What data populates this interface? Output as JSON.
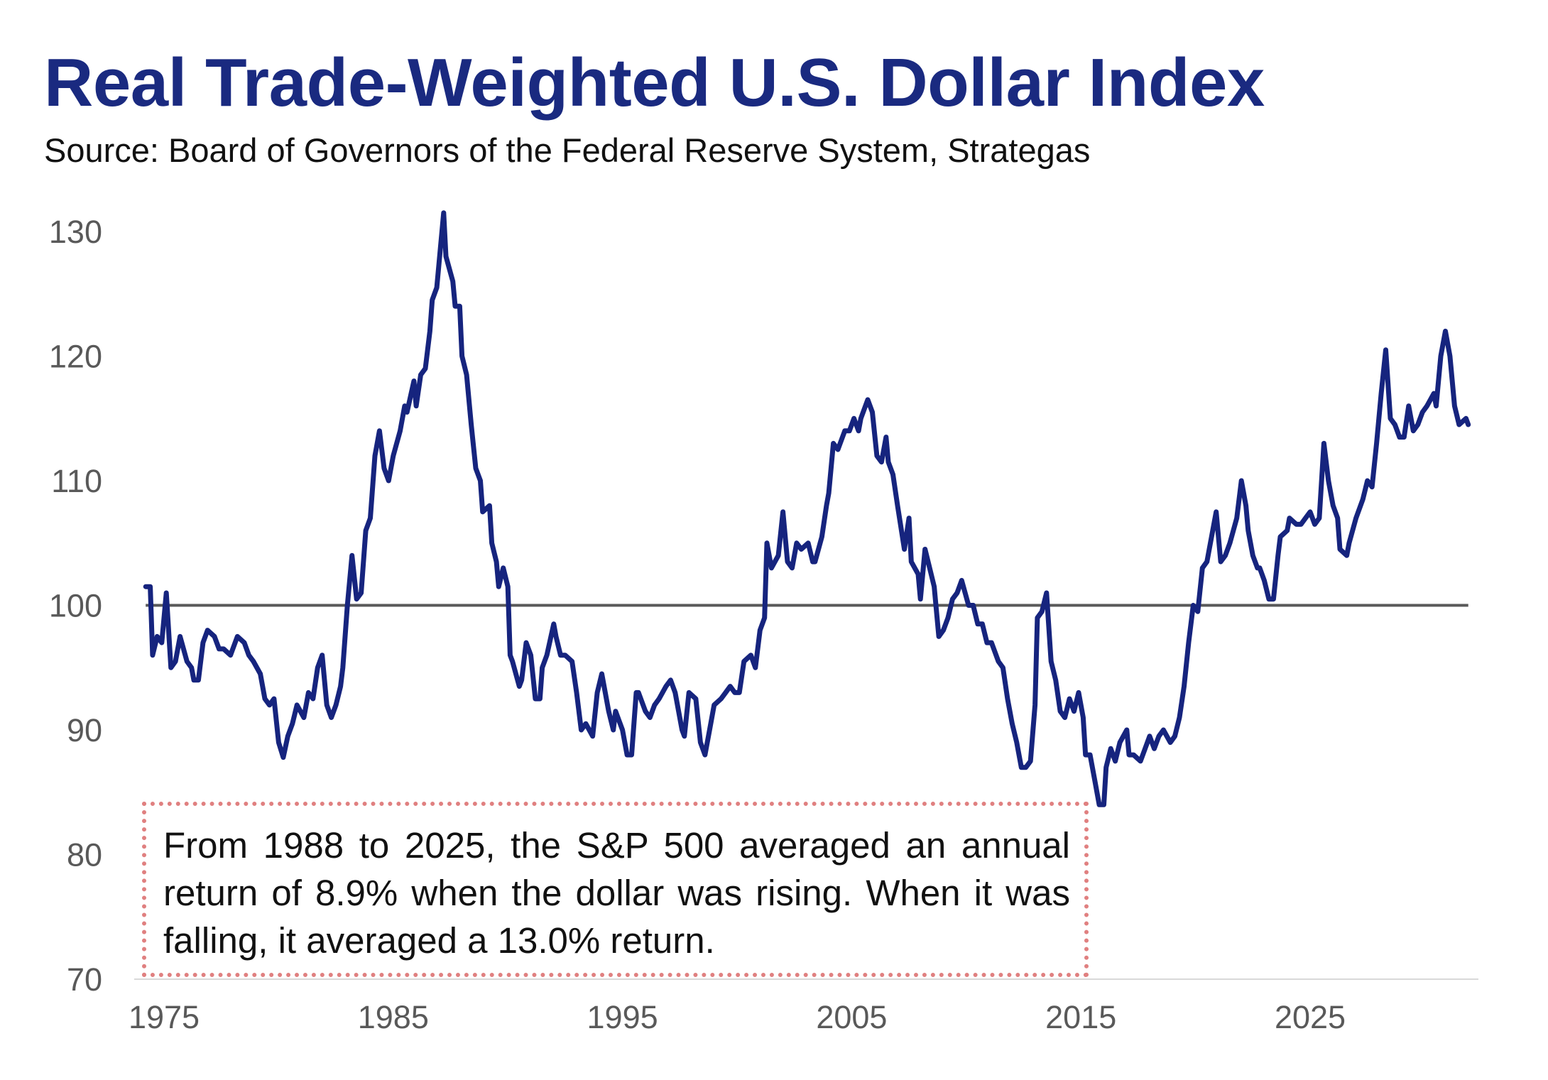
{
  "chart_data": {
    "type": "line",
    "title": "Real Trade-Weighted U.S. Dollar Index",
    "subtitle": "Source: Board of Governors of the Federal Reserve System, Strategas",
    "xlabel": "",
    "ylabel": "",
    "xlim": [
      1973,
      2033
    ],
    "ylim": [
      70,
      130
    ],
    "x_ticks": [
      "1975",
      "1985",
      "1995",
      "2005",
      "2015",
      "2025"
    ],
    "y_ticks": [
      "70",
      "80",
      "90",
      "100",
      "110",
      "120",
      "130"
    ],
    "grid": false,
    "legend": "none",
    "reference_line": 100,
    "colors": {
      "series": "#16247e",
      "reference": "#595959",
      "title": "#1a2a80",
      "annotation_border": "#e08080"
    },
    "series": [
      {
        "points": [
          [
            1974.2,
            101.5
          ],
          [
            1974.4,
            101.5
          ],
          [
            1974.5,
            96
          ],
          [
            1974.7,
            97.5
          ],
          [
            1974.9,
            97
          ],
          [
            1975.1,
            101
          ],
          [
            1975.3,
            95
          ],
          [
            1975.5,
            95.5
          ],
          [
            1975.7,
            97.5
          ],
          [
            1976.0,
            95.5
          ],
          [
            1976.2,
            95
          ],
          [
            1976.3,
            94
          ],
          [
            1976.5,
            94
          ],
          [
            1976.7,
            97
          ],
          [
            1976.9,
            98
          ],
          [
            1977.2,
            97.5
          ],
          [
            1977.4,
            96.5
          ],
          [
            1977.6,
            96.5
          ],
          [
            1977.9,
            96
          ],
          [
            1978.2,
            97.5
          ],
          [
            1978.5,
            97
          ],
          [
            1978.7,
            96
          ],
          [
            1978.9,
            95.5
          ],
          [
            1979.2,
            94.5
          ],
          [
            1979.4,
            92.5
          ],
          [
            1979.6,
            92
          ],
          [
            1979.8,
            92.5
          ],
          [
            1980.0,
            89
          ],
          [
            1980.2,
            87.8
          ],
          [
            1980.4,
            89.5
          ],
          [
            1980.6,
            90.5
          ],
          [
            1980.8,
            92
          ],
          [
            1981.1,
            91
          ],
          [
            1981.3,
            93
          ],
          [
            1981.5,
            92.5
          ],
          [
            1981.7,
            95
          ],
          [
            1981.9,
            96
          ],
          [
            1982.1,
            92
          ],
          [
            1982.3,
            91
          ],
          [
            1982.5,
            92
          ],
          [
            1982.7,
            93.5
          ],
          [
            1982.8,
            95
          ],
          [
            1983.0,
            100
          ],
          [
            1983.2,
            104
          ],
          [
            1983.4,
            100.5
          ],
          [
            1983.6,
            101
          ],
          [
            1983.8,
            106
          ],
          [
            1984.0,
            107
          ],
          [
            1984.2,
            112
          ],
          [
            1984.4,
            114
          ],
          [
            1984.6,
            111
          ],
          [
            1984.8,
            110
          ],
          [
            1985.0,
            112
          ],
          [
            1985.3,
            114
          ],
          [
            1985.5,
            116
          ],
          [
            1985.6,
            115.5
          ],
          [
            1985.9,
            118
          ],
          [
            1986.0,
            116
          ],
          [
            1986.2,
            118.5
          ],
          [
            1986.4,
            119
          ],
          [
            1986.6,
            122
          ],
          [
            1986.7,
            124.5
          ],
          [
            1986.9,
            125.5
          ],
          [
            1987.2,
            131.5
          ],
          [
            1987.3,
            128
          ],
          [
            1987.6,
            126
          ],
          [
            1987.7,
            124
          ],
          [
            1987.9,
            124
          ],
          [
            1988.0,
            120
          ],
          [
            1988.2,
            118.5
          ],
          [
            1988.4,
            114.5
          ],
          [
            1988.6,
            111
          ],
          [
            1988.8,
            110
          ],
          [
            1988.9,
            107.5
          ],
          [
            1989.2,
            108
          ],
          [
            1989.3,
            105
          ],
          [
            1989.5,
            103.5
          ],
          [
            1989.6,
            101.5
          ],
          [
            1989.8,
            103
          ],
          [
            1990.0,
            101.5
          ],
          [
            1990.1,
            96
          ],
          [
            1990.2,
            95.5
          ],
          [
            1990.5,
            93.5
          ],
          [
            1990.6,
            94
          ],
          [
            1990.8,
            97
          ],
          [
            1991.0,
            96
          ],
          [
            1991.2,
            92.5
          ],
          [
            1991.4,
            92.5
          ],
          [
            1991.5,
            95
          ],
          [
            1991.7,
            96
          ],
          [
            1992.0,
            98.5
          ],
          [
            1992.1,
            97.5
          ],
          [
            1992.3,
            96
          ],
          [
            1992.5,
            96
          ],
          [
            1992.8,
            95.5
          ],
          [
            1993.0,
            93
          ],
          [
            1993.2,
            90
          ],
          [
            1993.4,
            90.5
          ],
          [
            1993.7,
            89.5
          ],
          [
            1993.9,
            93
          ],
          [
            1994.1,
            94.5
          ],
          [
            1994.4,
            91.5
          ],
          [
            1994.6,
            90
          ],
          [
            1994.7,
            91.5
          ],
          [
            1995.0,
            90
          ],
          [
            1995.2,
            88
          ],
          [
            1995.4,
            88
          ],
          [
            1995.6,
            93
          ],
          [
            1995.7,
            93
          ],
          [
            1996.0,
            91.5
          ],
          [
            1996.2,
            91
          ],
          [
            1996.4,
            92
          ],
          [
            1996.6,
            92.5
          ],
          [
            1996.9,
            93.5
          ],
          [
            1997.1,
            94
          ],
          [
            1997.3,
            93
          ],
          [
            1997.6,
            90
          ],
          [
            1997.7,
            89.5
          ],
          [
            1997.9,
            93
          ],
          [
            1998.2,
            92.5
          ],
          [
            1998.4,
            89
          ],
          [
            1998.6,
            88
          ],
          [
            1998.8,
            90
          ],
          [
            1999.0,
            92
          ],
          [
            1999.3,
            92.5
          ],
          [
            1999.5,
            93
          ],
          [
            1999.7,
            93.5
          ],
          [
            1999.9,
            93
          ],
          [
            2000.1,
            93
          ],
          [
            2000.3,
            95.5
          ],
          [
            2000.6,
            96
          ],
          [
            2000.8,
            95
          ],
          [
            2001.0,
            98
          ],
          [
            2001.2,
            99
          ],
          [
            2001.3,
            105
          ],
          [
            2001.5,
            103
          ],
          [
            2001.8,
            104
          ],
          [
            2002.0,
            107.5
          ],
          [
            2002.2,
            103.5
          ],
          [
            2002.4,
            103
          ],
          [
            2002.6,
            105
          ],
          [
            2002.8,
            104.5
          ],
          [
            2003.1,
            105
          ],
          [
            2003.3,
            103.5
          ],
          [
            2003.4,
            103.5
          ],
          [
            2003.7,
            105.5
          ],
          [
            2003.9,
            108
          ],
          [
            2004.0,
            109
          ],
          [
            2004.2,
            113
          ],
          [
            2004.4,
            112.5
          ],
          [
            2004.7,
            114
          ],
          [
            2004.9,
            114
          ],
          [
            2005.1,
            115
          ],
          [
            2005.3,
            114
          ],
          [
            2005.4,
            115
          ],
          [
            2005.7,
            116.5
          ],
          [
            2005.9,
            115.5
          ],
          [
            2006.1,
            112
          ],
          [
            2006.3,
            111.5
          ],
          [
            2006.5,
            113.5
          ],
          [
            2006.6,
            111.5
          ],
          [
            2006.8,
            110.5
          ],
          [
            2007.0,
            108
          ],
          [
            2007.3,
            104.5
          ],
          [
            2007.5,
            107
          ],
          [
            2007.6,
            103.5
          ],
          [
            2007.9,
            102.5
          ],
          [
            2008.0,
            100.5
          ],
          [
            2008.2,
            104.5
          ],
          [
            2008.4,
            103
          ],
          [
            2008.6,
            101.5
          ],
          [
            2008.8,
            97.5
          ],
          [
            2009.0,
            98
          ],
          [
            2009.2,
            99
          ],
          [
            2009.4,
            100.5
          ],
          [
            2009.6,
            101
          ],
          [
            2009.8,
            102
          ],
          [
            2010.1,
            100
          ],
          [
            2010.3,
            100
          ],
          [
            2010.5,
            98.5
          ],
          [
            2010.7,
            98.5
          ],
          [
            2010.9,
            97
          ],
          [
            2011.1,
            97
          ],
          [
            2011.4,
            95.5
          ],
          [
            2011.6,
            95
          ],
          [
            2011.8,
            92.5
          ],
          [
            2012.0,
            90.5
          ],
          [
            2012.2,
            89
          ],
          [
            2012.4,
            87
          ],
          [
            2012.6,
            87
          ],
          [
            2012.8,
            87.5
          ],
          [
            2013.0,
            92
          ],
          [
            2013.1,
            99
          ],
          [
            2013.3,
            99.5
          ],
          [
            2013.5,
            101
          ],
          [
            2013.7,
            95.5
          ],
          [
            2013.9,
            94
          ],
          [
            2014.1,
            91.5
          ],
          [
            2014.3,
            91
          ],
          [
            2014.5,
            92.5
          ],
          [
            2014.7,
            91.5
          ],
          [
            2014.9,
            93
          ],
          [
            2015.1,
            91
          ],
          [
            2015.2,
            88
          ],
          [
            2015.4,
            88
          ],
          [
            2015.6,
            86
          ],
          [
            2015.8,
            84
          ],
          [
            2016.0,
            84
          ],
          [
            2016.1,
            87
          ],
          [
            2016.3,
            88.5
          ],
          [
            2016.5,
            87.5
          ],
          [
            2016.7,
            89
          ],
          [
            2017.0,
            90
          ],
          [
            2017.1,
            88
          ],
          [
            2017.3,
            88
          ],
          [
            2017.6,
            87.5
          ],
          [
            2017.8,
            88.5
          ],
          [
            2018.0,
            89.5
          ],
          [
            2018.2,
            88.5
          ],
          [
            2018.4,
            89.5
          ],
          [
            2018.6,
            90
          ],
          [
            2018.9,
            89
          ],
          [
            2019.1,
            89.5
          ],
          [
            2019.3,
            91
          ],
          [
            2019.5,
            93.5
          ],
          [
            2019.7,
            97
          ],
          [
            2019.9,
            100
          ],
          [
            2020.1,
            99.5
          ],
          [
            2020.3,
            103
          ],
          [
            2020.5,
            103.5
          ],
          [
            2020.7,
            105.5
          ],
          [
            2020.9,
            107.5
          ],
          [
            2021.1,
            103.5
          ],
          [
            2021.3,
            104
          ],
          [
            2021.5,
            105
          ],
          [
            2021.8,
            107
          ],
          [
            2022.0,
            110
          ],
          [
            2022.2,
            108
          ],
          [
            2022.3,
            106
          ],
          [
            2022.5,
            104
          ],
          [
            2022.7,
            103
          ],
          [
            2022.8,
            103
          ],
          [
            2023.0,
            102
          ],
          [
            2023.2,
            100.5
          ],
          [
            2023.4,
            100.5
          ],
          [
            2023.6,
            104
          ],
          [
            2023.7,
            105.5
          ],
          [
            2024.0,
            106
          ],
          [
            2024.1,
            107
          ],
          [
            2024.4,
            106.5
          ],
          [
            2024.6,
            106.5
          ],
          [
            2024.8,
            107
          ],
          [
            2025.0,
            107.5
          ],
          [
            2025.2,
            106.5
          ],
          [
            2025.4,
            107
          ],
          [
            2025.6,
            113
          ],
          [
            2025.8,
            110
          ],
          [
            2026.0,
            108
          ],
          [
            2026.2,
            107
          ],
          [
            2026.3,
            104.5
          ],
          [
            2026.6,
            104
          ],
          [
            2026.7,
            105
          ],
          [
            2027.0,
            107
          ],
          [
            2027.3,
            108.5
          ],
          [
            2027.5,
            110
          ],
          [
            2027.7,
            109.5
          ],
          [
            2027.9,
            113
          ],
          [
            2028.1,
            117
          ],
          [
            2028.3,
            120.5
          ],
          [
            2028.5,
            115
          ],
          [
            2028.7,
            114.5
          ],
          [
            2028.9,
            113.5
          ],
          [
            2029.1,
            113.5
          ],
          [
            2029.3,
            116
          ],
          [
            2029.5,
            114
          ],
          [
            2029.7,
            114.5
          ],
          [
            2029.9,
            115.5
          ],
          [
            2030.1,
            116
          ],
          [
            2030.4,
            117
          ],
          [
            2030.5,
            116
          ],
          [
            2030.7,
            120
          ],
          [
            2030.9,
            122
          ],
          [
            2031.1,
            120
          ],
          [
            2031.3,
            116
          ],
          [
            2031.5,
            114.5
          ],
          [
            2031.8,
            115
          ],
          [
            2031.9,
            114.5
          ]
        ]
      }
    ],
    "annotation": "From 1988 to 2025, the S&P 500 averaged an annual return of 8.9% when the dollar was rising. When it was falling, it averaged a 13.0% return."
  }
}
